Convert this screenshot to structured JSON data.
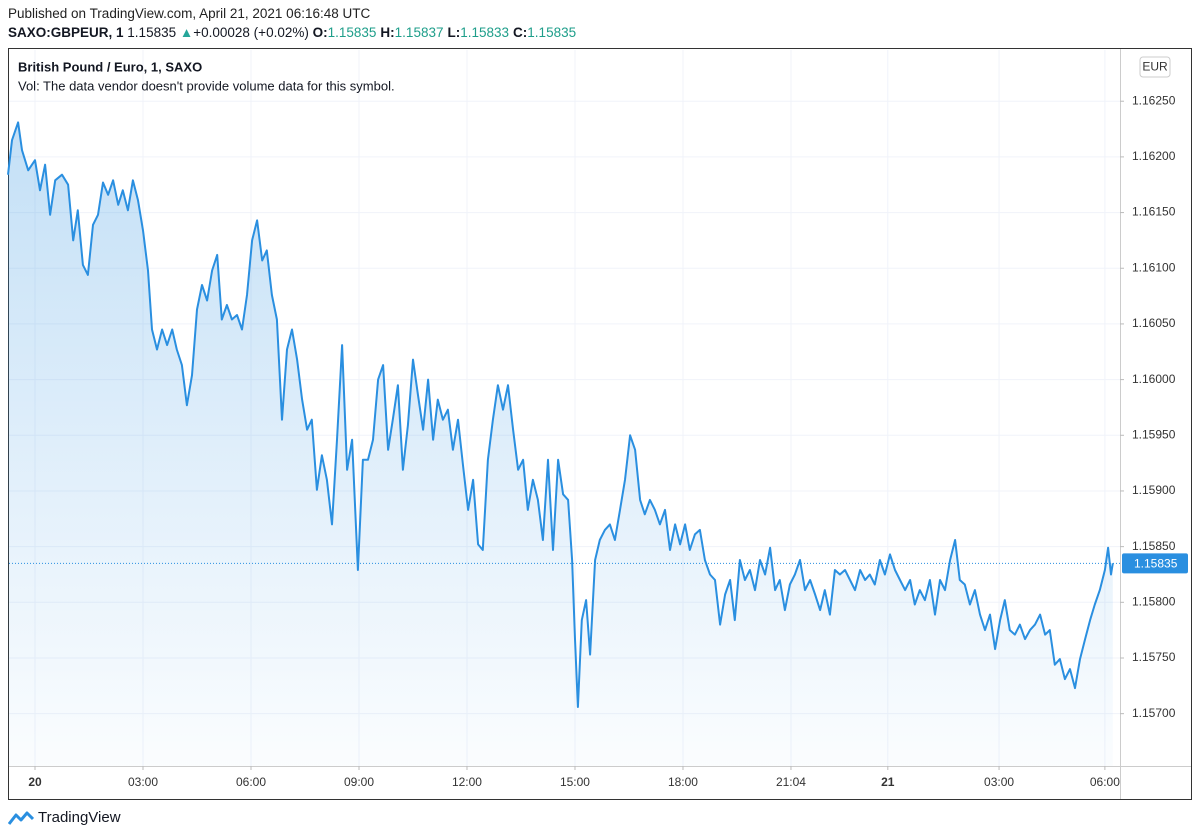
{
  "chart_data": {
    "type": "area",
    "published": "Published on TradingView.com, April 21, 2021 06:16:48 UTC",
    "symbol": "SAXO:GBPEUR, 1",
    "last": "1.15835",
    "change": "+0.00028 (+0.02%)",
    "ohlc": [
      {
        "label": "O:",
        "value": "1.15835"
      },
      {
        "label": "H:",
        "value": "1.15837"
      },
      {
        "label": "L:",
        "value": "1.15833"
      },
      {
        "label": "C:",
        "value": "1.15835"
      }
    ],
    "title": "British Pound / Euro, 1, SAXO",
    "subtitle": "Vol: The data vendor doesn't provide volume data for this symbol.",
    "currency": "EUR",
    "brand": "TradingView",
    "color": "#2a8fe0",
    "grid": true,
    "xlim": [
      -0.75,
      30.14
    ],
    "ylim": [
      1.15653,
      1.16296
    ],
    "xticks": [
      {
        "value": 0,
        "label": "20"
      },
      {
        "value": 3,
        "label": "03:00"
      },
      {
        "value": 6,
        "label": "06:00"
      },
      {
        "value": 9,
        "label": "09:00"
      },
      {
        "value": 12,
        "label": "12:00"
      },
      {
        "value": 15,
        "label": "15:00"
      },
      {
        "value": 18,
        "label": "18:00"
      },
      {
        "value": 21.0,
        "label": "21:04"
      },
      {
        "value": 23.69,
        "label": "21"
      },
      {
        "value": 26.78,
        "label": "03:00"
      },
      {
        "value": 29.72,
        "label": "06:00"
      }
    ],
    "yticks": [
      {
        "value": 1.157,
        "label": "1.15700"
      },
      {
        "value": 1.1575,
        "label": "1.15750"
      },
      {
        "value": 1.158,
        "label": "1.15800"
      },
      {
        "value": 1.1585,
        "label": "1.15850"
      },
      {
        "value": 1.159,
        "label": "1.15900"
      },
      {
        "value": 1.1595,
        "label": "1.15950"
      },
      {
        "value": 1.16,
        "label": "1.16000"
      },
      {
        "value": 1.1605,
        "label": "1.16050"
      },
      {
        "value": 1.161,
        "label": "1.16100"
      },
      {
        "value": 1.1615,
        "label": "1.16150"
      },
      {
        "value": 1.162,
        "label": "1.16200"
      },
      {
        "value": 1.1625,
        "label": "1.16250"
      }
    ],
    "x": [
      -0.75,
      -0.64,
      -0.47,
      -0.36,
      -0.19,
      0,
      0.14,
      0.28,
      0.42,
      0.56,
      0.75,
      0.92,
      1.06,
      1.19,
      1.33,
      1.47,
      1.61,
      1.75,
      1.89,
      2.03,
      2.17,
      2.31,
      2.44,
      2.58,
      2.72,
      2.86,
      3.0,
      3.14,
      3.25,
      3.39,
      3.53,
      3.67,
      3.81,
      3.94,
      4.08,
      4.22,
      4.36,
      4.5,
      4.64,
      4.78,
      4.92,
      5.06,
      5.19,
      5.33,
      5.47,
      5.61,
      5.75,
      5.89,
      6.03,
      6.17,
      6.31,
      6.44,
      6.58,
      6.72,
      6.86,
      7.0,
      7.14,
      7.28,
      7.42,
      7.56,
      7.69,
      7.83,
      7.97,
      8.11,
      8.25,
      8.39,
      8.53,
      8.67,
      8.81,
      8.97,
      9.11,
      9.25,
      9.39,
      9.53,
      9.67,
      9.81,
      9.94,
      10.08,
      10.22,
      10.36,
      10.5,
      10.64,
      10.78,
      10.92,
      11.06,
      11.19,
      11.33,
      11.47,
      11.61,
      11.75,
      11.89,
      12.03,
      12.17,
      12.31,
      12.44,
      12.58,
      12.72,
      12.86,
      13.0,
      13.14,
      13.28,
      13.42,
      13.56,
      13.69,
      13.83,
      13.97,
      14.11,
      14.25,
      14.39,
      14.53,
      14.67,
      14.81,
      14.92,
      15.0,
      15.08,
      15.19,
      15.31,
      15.42,
      15.56,
      15.69,
      15.83,
      15.97,
      16.11,
      16.25,
      16.39,
      16.53,
      16.67,
      16.81,
      16.94,
      17.08,
      17.22,
      17.36,
      17.5,
      17.64,
      17.78,
      17.92,
      18.06,
      18.19,
      18.33,
      18.47,
      18.61,
      18.75,
      18.89,
      19.03,
      19.17,
      19.31,
      19.44,
      19.58,
      19.72,
      19.86,
      20.0,
      20.14,
      20.28,
      20.42,
      20.56,
      20.69,
      20.83,
      20.97,
      21.11,
      21.25,
      21.39,
      21.53,
      21.67,
      21.81,
      21.94,
      22.08,
      22.22,
      22.36,
      22.5,
      22.64,
      22.78,
      22.92,
      23.06,
      23.19,
      23.33,
      23.47,
      23.61,
      23.75,
      23.89,
      24.03,
      24.17,
      24.31,
      24.44,
      24.58,
      24.72,
      24.86,
      25.0,
      25.14,
      25.28,
      25.42,
      25.56,
      25.69,
      25.83,
      25.97,
      26.11,
      26.25,
      26.39,
      26.53,
      26.67,
      26.81,
      26.94,
      27.08,
      27.22,
      27.36,
      27.5,
      27.64,
      27.78,
      27.92,
      28.06,
      28.19,
      28.33,
      28.47,
      28.61,
      28.75,
      28.89,
      29.03,
      29.17,
      29.31,
      29.44,
      29.58,
      29.72,
      29.81,
      29.89,
      29.94
    ],
    "values": [
      1.16184,
      1.16215,
      1.16231,
      1.16206,
      1.16188,
      1.16197,
      1.1617,
      1.16193,
      1.16148,
      1.16179,
      1.16184,
      1.16175,
      1.16125,
      1.16152,
      1.16103,
      1.16094,
      1.16139,
      1.16148,
      1.16177,
      1.16166,
      1.16179,
      1.16157,
      1.1617,
      1.16152,
      1.16179,
      1.16161,
      1.16134,
      1.16098,
      1.16045,
      1.16027,
      1.16045,
      1.16031,
      1.16045,
      1.16027,
      1.16013,
      1.15977,
      1.16004,
      1.16063,
      1.16085,
      1.16071,
      1.16098,
      1.16112,
      1.16054,
      1.16067,
      1.16054,
      1.16058,
      1.16045,
      1.16076,
      1.16125,
      1.16143,
      1.16107,
      1.16116,
      1.16076,
      1.16054,
      1.15964,
      1.16027,
      1.16045,
      1.16018,
      1.15982,
      1.15955,
      1.15964,
      1.15901,
      1.15932,
      1.1591,
      1.1587,
      1.15946,
      1.16031,
      1.15919,
      1.15946,
      1.15829,
      1.15928,
      1.15928,
      1.15946,
      1.16,
      1.16013,
      1.15937,
      1.15964,
      1.15995,
      1.15919,
      1.15959,
      1.16018,
      1.15986,
      1.15955,
      1.16,
      1.15946,
      1.15982,
      1.15964,
      1.15973,
      1.15937,
      1.15964,
      1.15923,
      1.15883,
      1.1591,
      1.15852,
      1.15847,
      1.15928,
      1.15964,
      1.15995,
      1.15973,
      1.15995,
      1.15955,
      1.15919,
      1.15928,
      1.15883,
      1.1591,
      1.15892,
      1.15856,
      1.15928,
      1.15847,
      1.15928,
      1.15897,
      1.15892,
      1.15838,
      1.15767,
      1.15706,
      1.15784,
      1.15802,
      1.15753,
      1.15838,
      1.15856,
      1.15865,
      1.1587,
      1.15856,
      1.15883,
      1.1591,
      1.1595,
      1.15937,
      1.15892,
      1.15879,
      1.15892,
      1.15883,
      1.1587,
      1.15883,
      1.15847,
      1.1587,
      1.15852,
      1.1587,
      1.15847,
      1.15861,
      1.15865,
      1.15838,
      1.15825,
      1.1582,
      1.1578,
      1.15807,
      1.1582,
      1.15784,
      1.15838,
      1.1582,
      1.15829,
      1.15811,
      1.15838,
      1.15825,
      1.15849,
      1.15811,
      1.1582,
      1.15793,
      1.15816,
      1.15825,
      1.15838,
      1.15811,
      1.1582,
      1.15807,
      1.15793,
      1.15811,
      1.15789,
      1.15829,
      1.15825,
      1.15829,
      1.1582,
      1.15811,
      1.15829,
      1.1582,
      1.15825,
      1.15816,
      1.15838,
      1.15825,
      1.15843,
      1.15829,
      1.1582,
      1.15811,
      1.1582,
      1.15798,
      1.15811,
      1.15802,
      1.1582,
      1.15789,
      1.1582,
      1.15811,
      1.15838,
      1.15856,
      1.1582,
      1.15816,
      1.15798,
      1.15811,
      1.15789,
      1.15775,
      1.15789,
      1.15758,
      1.15784,
      1.15802,
      1.15775,
      1.15771,
      1.1578,
      1.15767,
      1.15775,
      1.1578,
      1.15789,
      1.15771,
      1.15775,
      1.15744,
      1.15749,
      1.15731,
      1.1574,
      1.15723,
      1.15749,
      1.15767,
      1.15784,
      1.15798,
      1.15811,
      1.15829,
      1.15849,
      1.15825,
      1.15835
    ]
  }
}
